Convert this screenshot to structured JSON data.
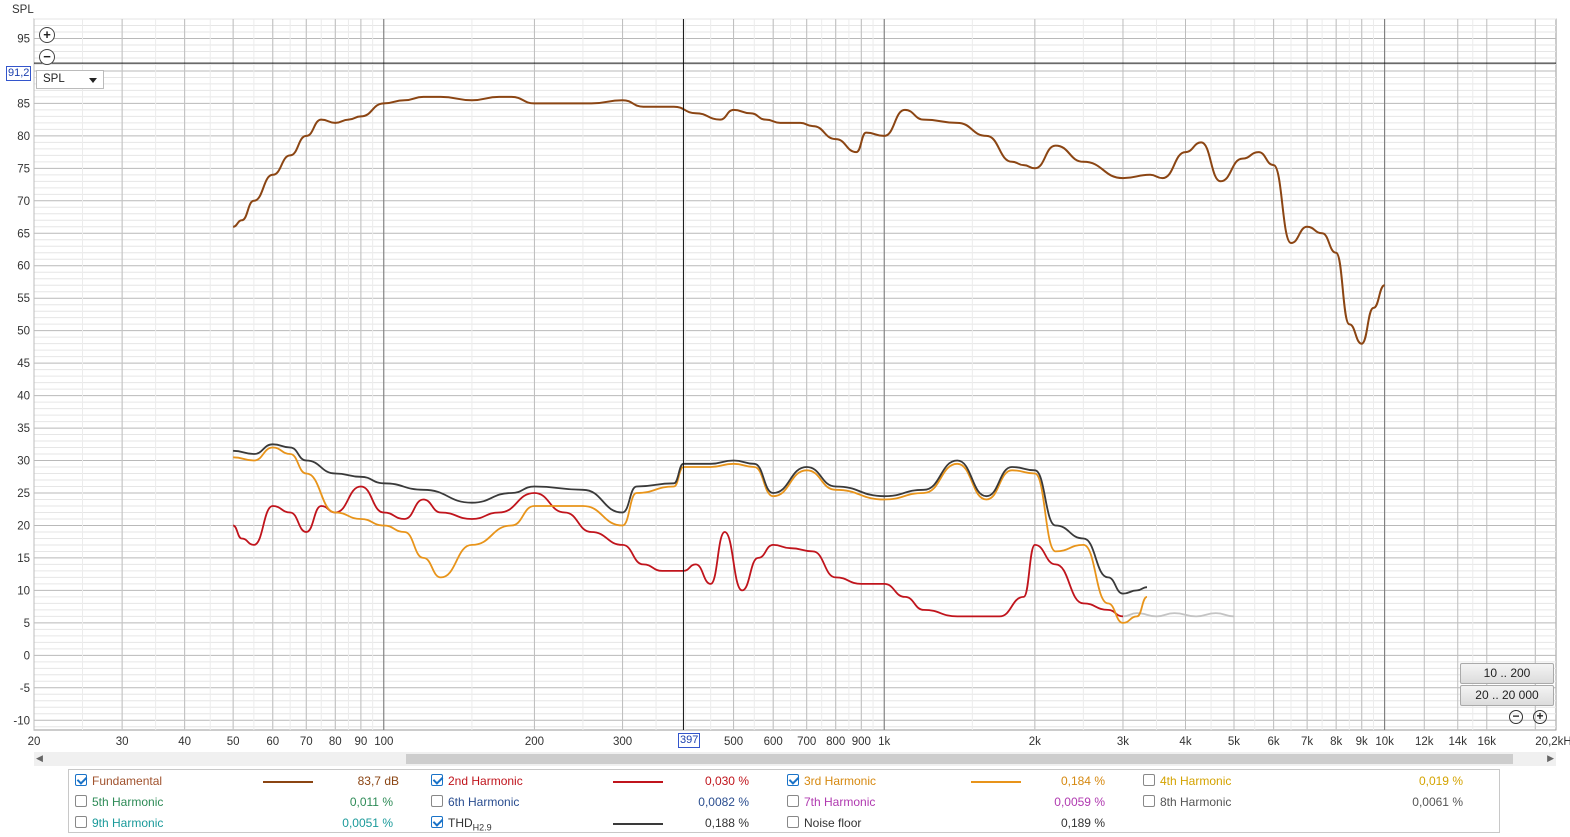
{
  "chart_data": {
    "type": "line",
    "ylabel": "SPL",
    "ylim": [
      -11.5,
      98
    ],
    "xlim": [
      20,
      22000
    ],
    "xscale": "log",
    "yticks": [
      95,
      90,
      85,
      80,
      75,
      70,
      65,
      60,
      55,
      50,
      45,
      40,
      35,
      30,
      25,
      20,
      15,
      10,
      5,
      0,
      -5,
      -10
    ],
    "xticks": [
      {
        "v": 20,
        "t": "20"
      },
      {
        "v": 30,
        "t": "30"
      },
      {
        "v": 40,
        "t": "40"
      },
      {
        "v": 50,
        "t": "50"
      },
      {
        "v": 60,
        "t": "60"
      },
      {
        "v": 70,
        "t": "70"
      },
      {
        "v": 80,
        "t": "80"
      },
      {
        "v": 90,
        "t": "90"
      },
      {
        "v": 100,
        "t": "100"
      },
      {
        "v": 200,
        "t": "200"
      },
      {
        "v": 300,
        "t": "300"
      },
      {
        "v": 500,
        "t": "500"
      },
      {
        "v": 600,
        "t": "600"
      },
      {
        "v": 700,
        "t": "700"
      },
      {
        "v": 800,
        "t": "800"
      },
      {
        "v": 900,
        "t": "900"
      },
      {
        "v": 1000,
        "t": "1k"
      },
      {
        "v": 2000,
        "t": "2k"
      },
      {
        "v": 3000,
        "t": "3k"
      },
      {
        "v": 4000,
        "t": "4k"
      },
      {
        "v": 5000,
        "t": "5k"
      },
      {
        "v": 6000,
        "t": "6k"
      },
      {
        "v": 7000,
        "t": "7k"
      },
      {
        "v": 8000,
        "t": "8k"
      },
      {
        "v": 9000,
        "t": "9k"
      },
      {
        "v": 10000,
        "t": "10k"
      },
      {
        "v": 12000,
        "t": "12k"
      },
      {
        "v": 14000,
        "t": "14k"
      },
      {
        "v": 16000,
        "t": "16k"
      },
      {
        "v": 20000,
        "t": "20,2kHz"
      }
    ],
    "grid": true,
    "cursor": {
      "x": 397,
      "y": 91.2
    },
    "series": [
      {
        "name": "Fundamental",
        "color": "#8b4513",
        "x": [
          50,
          52,
          55,
          60,
          65,
          70,
          75,
          80,
          85,
          90,
          100,
          110,
          120,
          130,
          150,
          170,
          180,
          200,
          230,
          260,
          300,
          330,
          380,
          420,
          470,
          500,
          540,
          580,
          620,
          680,
          720,
          800,
          880,
          920,
          1000,
          1100,
          1200,
          1400,
          1600,
          1800,
          1900,
          2000,
          2200,
          2500,
          3000,
          3400,
          3600,
          4000,
          4300,
          4700,
          5200,
          5600,
          6000,
          6500,
          7000,
          7500,
          8000,
          8500,
          9000,
          9500,
          10000
        ],
        "y": [
          66,
          67,
          70,
          74,
          77,
          80,
          82.5,
          82,
          82.5,
          83,
          85,
          85.5,
          86,
          86,
          85.5,
          86,
          86,
          85,
          85,
          85,
          85.5,
          84.5,
          84.5,
          83.5,
          82.5,
          84,
          83.5,
          82.5,
          82,
          82,
          81.5,
          79.5,
          77.5,
          80.5,
          80,
          84,
          82.5,
          82,
          80,
          76,
          75.5,
          75,
          78.5,
          76,
          73.5,
          74,
          73.5,
          77.5,
          79,
          73,
          76.5,
          77.5,
          75.5,
          63.5,
          66,
          65,
          62,
          51,
          48,
          53.5,
          57
        ]
      },
      {
        "name": "THD",
        "color": "#3a3a3a",
        "x": [
          50,
          55,
          60,
          65,
          70,
          80,
          90,
          100,
          120,
          150,
          180,
          200,
          250,
          300,
          320,
          380,
          397,
          450,
          500,
          550,
          600,
          700,
          800,
          1000,
          1200,
          1400,
          1600,
          1800,
          2000,
          2200,
          2500,
          2800,
          3000,
          3200,
          3350
        ],
        "y": [
          31.5,
          31,
          32.5,
          32,
          30,
          28,
          27.5,
          26.5,
          25.5,
          23.5,
          25,
          26,
          25.5,
          22,
          26,
          26.5,
          29.5,
          29.5,
          30,
          29.5,
          25,
          29,
          26,
          24.5,
          25.5,
          30,
          24.5,
          29,
          28.5,
          20,
          18,
          12,
          9.5,
          10,
          10.5
        ]
      },
      {
        "name": "3rd Harmonic",
        "color": "#e8941a",
        "x": [
          50,
          55,
          60,
          65,
          70,
          80,
          90,
          100,
          110,
          120,
          130,
          150,
          180,
          200,
          250,
          300,
          320,
          380,
          397,
          450,
          500,
          550,
          600,
          700,
          800,
          1000,
          1200,
          1400,
          1600,
          1800,
          2000,
          2200,
          2500,
          2800,
          3000,
          3200,
          3350
        ],
        "y": [
          30.5,
          30,
          32,
          31,
          28,
          22,
          21,
          20,
          19,
          15,
          12,
          17,
          20,
          23,
          23,
          20,
          25,
          26,
          29,
          29,
          29.5,
          29,
          24.5,
          28.5,
          25.5,
          24,
          25,
          29.5,
          24,
          28.5,
          28,
          16,
          17,
          8,
          5,
          6,
          9
        ]
      },
      {
        "name": "2nd Harmonic",
        "color": "#c0141c",
        "x": [
          50,
          52,
          55,
          60,
          65,
          70,
          75,
          80,
          90,
          100,
          110,
          120,
          130,
          150,
          170,
          200,
          230,
          260,
          300,
          330,
          360,
          397,
          420,
          450,
          480,
          520,
          560,
          600,
          650,
          720,
          800,
          900,
          1000,
          1100,
          1200,
          1400,
          1700,
          1900,
          2000,
          2200,
          2500,
          2800,
          3000
        ],
        "y": [
          20,
          18,
          17,
          23,
          22,
          19,
          23,
          22,
          26,
          22,
          21,
          24,
          22,
          21,
          22,
          25,
          22,
          19,
          17,
          14,
          13,
          13,
          14,
          11,
          19,
          10,
          15,
          17,
          16.5,
          16,
          12,
          11,
          11,
          9,
          7,
          6,
          6,
          9,
          17,
          14,
          8,
          7,
          6
        ]
      },
      {
        "name": "Noise floor",
        "color": "#c4c4c4",
        "x": [
          3000,
          3200,
          3500,
          3800,
          4200,
          4600,
          5000
        ],
        "y": [
          6,
          6.5,
          6,
          6.5,
          6,
          6.5,
          6
        ]
      }
    ]
  },
  "ui": {
    "y_axis_title": "SPL",
    "cursor_y_readout": "91,2",
    "cursor_x_readout": "397",
    "select_value": "SPL",
    "range_buttons": [
      "10 .. 200",
      "20 .. 20 000"
    ],
    "zoom_in_symbol": "+",
    "zoom_out_symbol": "−"
  },
  "legend": [
    {
      "label": "Fundamental",
      "checked": true,
      "color": "#a0522d",
      "line_color": "#8b4513",
      "value": "83,7 dB",
      "value_color": "#8b4513"
    },
    {
      "label": "2nd Harmonic",
      "checked": true,
      "color": "#c0141c",
      "line_color": "#c0141c",
      "value": "0,030 %",
      "value_color": "#c0141c"
    },
    {
      "label": "3rd Harmonic",
      "checked": true,
      "color": "#d68910",
      "line_color": "#e8941a",
      "value": "0,184 %",
      "value_color": "#d68910"
    },
    {
      "label": "4th Harmonic",
      "checked": false,
      "color": "#d4a300",
      "line_color": "",
      "value": "0,019 %",
      "value_color": "#d4a300"
    },
    {
      "label": "5th Harmonic",
      "checked": false,
      "color": "#2e8b57",
      "line_color": "",
      "value": "0,011 %",
      "value_color": "#2e8b57"
    },
    {
      "label": "6th Harmonic",
      "checked": false,
      "color": "#2a4d8f",
      "line_color": "",
      "value": "0,0082 %",
      "value_color": "#2a4d8f"
    },
    {
      "label": "7th Harmonic",
      "checked": false,
      "color": "#b03ab0",
      "line_color": "",
      "value": "0,0059 %",
      "value_color": "#b03ab0"
    },
    {
      "label": "8th Harmonic",
      "checked": false,
      "color": "#555555",
      "line_color": "",
      "value": "0,0061 %",
      "value_color": "#555555"
    },
    {
      "label": "9th Harmonic",
      "checked": false,
      "color": "#1a9a9a",
      "line_color": "",
      "value": "0,0051 %",
      "value_color": "#1a9a9a"
    },
    {
      "label": "THD",
      "sub": "H2.9",
      "checked": true,
      "color": "#333333",
      "line_color": "#3a3a3a",
      "value": "0,188 %",
      "value_color": "#333333"
    },
    {
      "label": "Noise floor",
      "checked": false,
      "color": "#333333",
      "line_color": "",
      "value": "0,189 %",
      "value_color": "#333333"
    }
  ]
}
